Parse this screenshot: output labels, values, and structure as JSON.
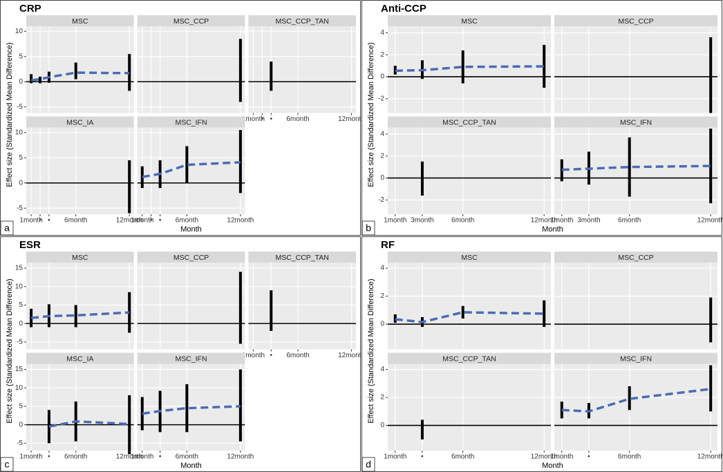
{
  "chart_data": [
    {
      "type": "errorbar",
      "title": "CRP",
      "label": "a",
      "x_label": "Month",
      "y_label": "Effect size (Standardized Mean Difference)",
      "ncol": 3,
      "ylim": [
        -6.2,
        11
      ],
      "yticks": [
        -5,
        0,
        5,
        10
      ],
      "xlim": [
        0.45,
        12.5
      ],
      "xticks": [
        {
          "value": 1,
          "label": "1month"
        },
        {
          "value": 2,
          "label": "•"
        },
        {
          "value": 3,
          "label": "•"
        },
        {
          "value": 6,
          "label": "6month"
        },
        {
          "value": 12,
          "label": "12month"
        }
      ],
      "hline": 0,
      "color": "#4a6cb3",
      "facets": [
        {
          "name": "MSC",
          "x": [
            1,
            2,
            3,
            6,
            12
          ],
          "lower": [
            -0.3,
            -0.3,
            -0.2,
            0.5,
            -1.8
          ],
          "upper": [
            1.5,
            1.0,
            2.0,
            3.8,
            5.5
          ],
          "trend": [
            0.3,
            0.5,
            0.9,
            1.8,
            1.7
          ]
        },
        {
          "name": "MSC_CCP",
          "x": [
            12
          ],
          "lower": [
            -4
          ],
          "upper": [
            8.5
          ]
        },
        {
          "name": "MSC_CCP_TAN",
          "x": [
            3
          ],
          "lower": [
            -1.8
          ],
          "upper": [
            4
          ]
        },
        {
          "name": "MSC_IA",
          "x": [
            12
          ],
          "lower": [
            -6
          ],
          "upper": [
            4.5
          ]
        },
        {
          "name": "MSC_IFN",
          "x": [
            1,
            3,
            6,
            12
          ],
          "lower": [
            -1,
            -1,
            0,
            -2
          ],
          "upper": [
            3.3,
            4.5,
            7.3,
            10.5
          ],
          "trend": [
            1.2,
            1.8,
            3.6,
            4.1
          ]
        }
      ]
    },
    {
      "type": "errorbar",
      "title": "Anti-CCP",
      "label": "b",
      "x_label": "Month",
      "y_label": "Effect size (Standardized Mean Difference)",
      "ncol": 2,
      "ylim": [
        -3.3,
        4.6
      ],
      "yticks": [
        -2,
        0,
        2,
        4
      ],
      "xlim": [
        0.45,
        12.5
      ],
      "xticks": [
        {
          "value": 1,
          "label": "1month"
        },
        {
          "value": 3,
          "label": "3month"
        },
        {
          "value": 6,
          "label": "6month"
        },
        {
          "value": 12,
          "label": "12month"
        }
      ],
      "hline": 0,
      "color": "#4a6cb3",
      "facets": [
        {
          "name": "MSC",
          "x": [
            1,
            3,
            6,
            12
          ],
          "lower": [
            0.2,
            -0.2,
            -0.6,
            -1
          ],
          "upper": [
            1.0,
            1.5,
            2.4,
            2.9
          ],
          "trend": [
            0.55,
            0.6,
            0.9,
            0.95
          ]
        },
        {
          "name": "MSC_CCP",
          "x": [
            12
          ],
          "lower": [
            -3.3
          ],
          "upper": [
            3.6
          ]
        },
        {
          "name": "MSC_CCP_TAN",
          "x": [
            3
          ],
          "lower": [
            -1.6
          ],
          "upper": [
            1.5
          ]
        },
        {
          "name": "MSC_IFN",
          "x": [
            1,
            3,
            6,
            12
          ],
          "lower": [
            -0.3,
            -0.6,
            -1.7,
            -2.3
          ],
          "upper": [
            1.7,
            2.4,
            3.7,
            4.5
          ],
          "trend": [
            0.75,
            0.85,
            1.0,
            1.1
          ]
        }
      ]
    },
    {
      "type": "errorbar",
      "title": "ESR",
      "label": "c",
      "x_label": "Month",
      "y_label": "Effect size (Standardized Mean Difference)",
      "ncol": 3,
      "ylim": [
        -7,
        16.5
      ],
      "yticks": [
        -5,
        0,
        5,
        10,
        15
      ],
      "xlim": [
        0.45,
        12.5
      ],
      "xticks": [
        {
          "value": 1,
          "label": "1month"
        },
        {
          "value": 3,
          "label": "•"
        },
        {
          "value": 6,
          "label": "6month"
        },
        {
          "value": 12,
          "label": "12month"
        }
      ],
      "hline": 0,
      "color": "#4a6cb3",
      "facets": [
        {
          "name": "MSC",
          "x": [
            1,
            3,
            6,
            12
          ],
          "lower": [
            -1,
            -1,
            -1,
            -2.5
          ],
          "upper": [
            4,
            5.2,
            5,
            8.5
          ],
          "trend": [
            1.5,
            2,
            2.2,
            3
          ]
        },
        {
          "name": "MSC_CCP",
          "x": [
            12
          ],
          "lower": [
            -5.5
          ],
          "upper": [
            14
          ]
        },
        {
          "name": "MSC_CCP_TAN",
          "x": [
            3
          ],
          "lower": [
            -2
          ],
          "upper": [
            9
          ]
        },
        {
          "name": "MSC_IA",
          "x": [
            3,
            6,
            12
          ],
          "lower": [
            -5,
            -4.5,
            -8
          ],
          "upper": [
            4,
            6.3,
            8
          ],
          "trend": [
            -0.5,
            0.9,
            0.2
          ]
        },
        {
          "name": "MSC_IFN",
          "x": [
            1,
            3,
            6,
            12
          ],
          "lower": [
            -1.5,
            -2,
            -2,
            -4.5
          ],
          "upper": [
            7.5,
            9.2,
            11,
            15
          ],
          "trend": [
            3,
            3.7,
            4.5,
            5
          ]
        }
      ]
    },
    {
      "type": "errorbar",
      "title": "RF",
      "label": "d",
      "x_label": "Month",
      "y_label": "Effect size (Standardized Mean Difference)",
      "ncol": 2,
      "ylim": [
        -1.8,
        4.4
      ],
      "yticks": [
        0,
        2,
        4
      ],
      "xlim": [
        0.45,
        12.5
      ],
      "xticks": [
        {
          "value": 1,
          "label": "1month"
        },
        {
          "value": 3,
          "label": "•"
        },
        {
          "value": 6,
          "label": "6month"
        },
        {
          "value": 12,
          "label": "12month"
        }
      ],
      "hline": 0,
      "color": "#4a6cb3",
      "facets": [
        {
          "name": "MSC",
          "x": [
            1,
            3,
            6,
            12
          ],
          "lower": [
            0.1,
            -0.2,
            0.4,
            -0.2
          ],
          "upper": [
            0.7,
            0.5,
            1.3,
            1.7
          ],
          "trend": [
            0.35,
            0.15,
            0.85,
            0.75
          ]
        },
        {
          "name": "MSC_CCP",
          "x": [
            12
          ],
          "lower": [
            -1.3
          ],
          "upper": [
            1.9
          ]
        },
        {
          "name": "MSC_CCP_TAN",
          "x": [
            3
          ],
          "lower": [
            -1
          ],
          "upper": [
            0.4
          ]
        },
        {
          "name": "MSC_IFN",
          "x": [
            1,
            3,
            6,
            12
          ],
          "lower": [
            0.5,
            0.5,
            1.1,
            1
          ],
          "upper": [
            1.7,
            1.6,
            2.8,
            4.3
          ],
          "trend": [
            1.1,
            1.0,
            1.9,
            2.6
          ]
        }
      ]
    }
  ]
}
